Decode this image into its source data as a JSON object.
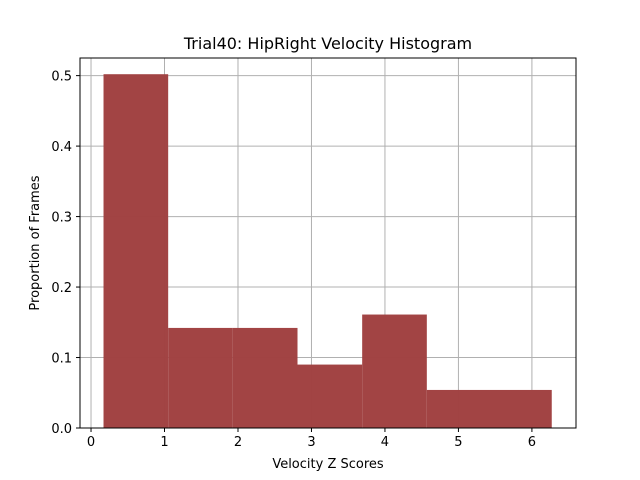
{
  "chart_data": {
    "type": "bar",
    "title": "Trial40: HipRight Velocity Histogram",
    "xlabel": "Velocity Z Scores",
    "ylabel": "Proportion of Frames",
    "xlim": [
      -0.15,
      6.6
    ],
    "ylim": [
      0,
      0.525
    ],
    "xticks": [
      0,
      1,
      2,
      3,
      4,
      5,
      6
    ],
    "yticks": [
      0.0,
      0.1,
      0.2,
      0.3,
      0.4,
      0.5
    ],
    "xtick_labels": [
      "0",
      "1",
      "2",
      "3",
      "4",
      "5",
      "6"
    ],
    "ytick_labels": [
      "0.0",
      "0.1",
      "0.2",
      "0.3",
      "0.4",
      "0.5"
    ],
    "grid": true,
    "bar_color": "#a04040",
    "bins": [
      {
        "x0": 0.17,
        "x1": 1.05,
        "value": 0.502
      },
      {
        "x0": 1.05,
        "x1": 1.93,
        "value": 0.142
      },
      {
        "x0": 1.93,
        "x1": 2.81,
        "value": 0.142
      },
      {
        "x0": 2.81,
        "x1": 3.69,
        "value": 0.09
      },
      {
        "x0": 3.69,
        "x1": 4.57,
        "value": 0.161
      },
      {
        "x0": 4.57,
        "x1": 5.45,
        "value": 0.054
      },
      {
        "x0": 5.45,
        "x1": 6.27,
        "value": 0.054
      }
    ]
  }
}
